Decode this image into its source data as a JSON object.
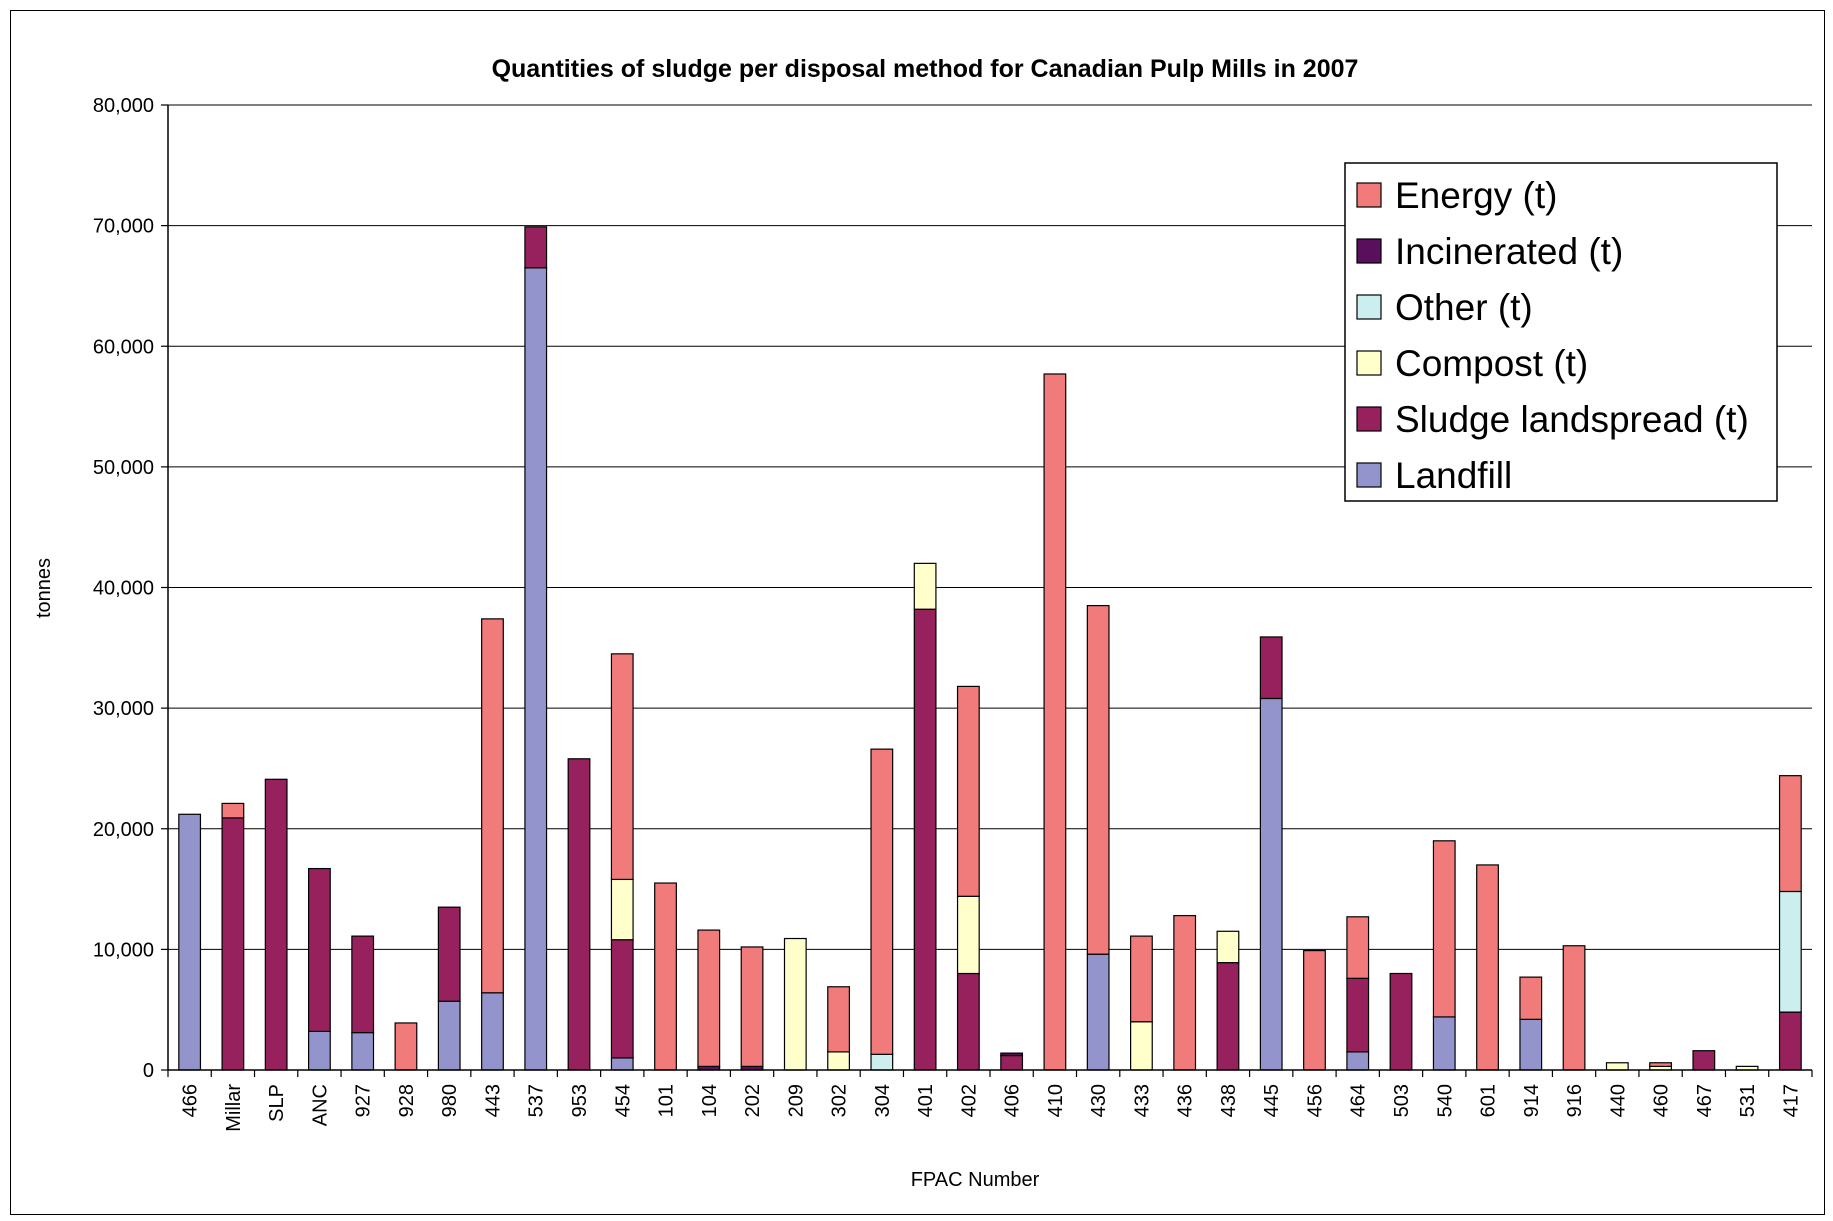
{
  "chart_data": {
    "type": "bar",
    "stacked": true,
    "title": "Quantities of sludge per disposal method for Canadian Pulp Mills in 2007",
    "xlabel": "FPAC Number",
    "ylabel": "tonnes",
    "ylim": [
      0,
      80000
    ],
    "yticks": [
      "0",
      "10,000",
      "20,000",
      "30,000",
      "40,000",
      "50,000",
      "60,000",
      "70,000",
      "80,000"
    ],
    "grid": true,
    "legend_position": "top-right",
    "categories": [
      "466",
      "Millar",
      "SLP",
      "ANC",
      "927",
      "928",
      "980",
      "443",
      "537",
      "953",
      "454",
      "101",
      "104",
      "202",
      "209",
      "302",
      "304",
      "401",
      "402",
      "406",
      "410",
      "430",
      "433",
      "436",
      "438",
      "445",
      "456",
      "464",
      "503",
      "540",
      "601",
      "914",
      "916",
      "440",
      "460",
      "467",
      "531",
      "417"
    ],
    "series": [
      {
        "name": "Landfill",
        "color": "#9494cc",
        "values": [
          21200,
          0,
          0,
          3200,
          3100,
          0,
          5700,
          6400,
          66500,
          0,
          1000,
          0,
          0,
          0,
          0,
          0,
          0,
          0,
          0,
          0,
          0,
          9600,
          0,
          0,
          0,
          30800,
          0,
          1500,
          0,
          4400,
          0,
          4200,
          0,
          0,
          0,
          0,
          0,
          0
        ]
      },
      {
        "name": "Sludge landspread (t)",
        "color": "#97215d",
        "values": [
          0,
          20900,
          24100,
          13500,
          8000,
          0,
          7800,
          0,
          3400,
          25800,
          9800,
          0,
          0,
          0,
          0,
          0,
          0,
          38200,
          8000,
          1200,
          0,
          0,
          0,
          0,
          8900,
          5100,
          0,
          6100,
          8000,
          0,
          0,
          0,
          0,
          0,
          0,
          1600,
          0,
          4800
        ]
      },
      {
        "name": "Compost (t)",
        "color": "#ffffcc",
        "values": [
          0,
          0,
          0,
          0,
          0,
          0,
          0,
          0,
          0,
          0,
          5000,
          0,
          0,
          0,
          10900,
          1500,
          0,
          3800,
          6400,
          0,
          0,
          0,
          4000,
          0,
          2600,
          0,
          0,
          0,
          0,
          0,
          0,
          0,
          0,
          600,
          300,
          0,
          300,
          0
        ]
      },
      {
        "name": "Other (t)",
        "color": "#cceeee",
        "values": [
          0,
          0,
          0,
          0,
          0,
          0,
          0,
          0,
          0,
          0,
          0,
          0,
          0,
          0,
          0,
          0,
          1300,
          0,
          0,
          0,
          0,
          0,
          0,
          0,
          0,
          0,
          0,
          0,
          0,
          0,
          0,
          0,
          0,
          0,
          0,
          0,
          0,
          10000
        ]
      },
      {
        "name": "Incinerated (t)",
        "color": "#5a0f5c",
        "values": [
          0,
          0,
          0,
          0,
          0,
          0,
          0,
          0,
          0,
          0,
          0,
          0,
          300,
          300,
          0,
          0,
          0,
          0,
          0,
          200,
          0,
          0,
          0,
          0,
          0,
          0,
          0,
          0,
          0,
          0,
          0,
          0,
          0,
          0,
          0,
          0,
          0,
          0
        ]
      },
      {
        "name": "Energy (t)",
        "color": "#f17b7b",
        "values": [
          0,
          1200,
          0,
          0,
          0,
          3900,
          0,
          31000,
          0,
          0,
          18700,
          15500,
          11300,
          9900,
          0,
          5400,
          25300,
          0,
          17400,
          0,
          57700,
          28900,
          7100,
          12800,
          0,
          0,
          9900,
          5100,
          0,
          14600,
          17000,
          3500,
          10300,
          0,
          300,
          0,
          0,
          9600
        ]
      }
    ],
    "legend_order": [
      "Energy (t)",
      "Incinerated (t)",
      "Other (t)",
      "Compost (t)",
      "Sludge landspread (t)",
      "Landfill"
    ]
  }
}
